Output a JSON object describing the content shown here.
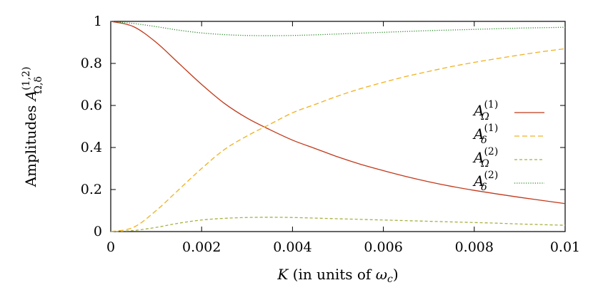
{
  "chart_data": {
    "type": "line",
    "xlabel": {
      "var": "K",
      "text": " (in units of ",
      "unit_base": "ω",
      "unit_sub": "c",
      "close": ")"
    },
    "ylabel": {
      "prefix": "Amplitudes ",
      "base": "A",
      "sup": "(1,2)",
      "sub": "Ω,δ"
    },
    "xlim": [
      0,
      0.01
    ],
    "ylim": [
      0,
      1
    ],
    "xticks": [
      0,
      0.002,
      0.004,
      0.006,
      0.008,
      0.01
    ],
    "xtick_labels": [
      "0",
      "0.002",
      "0.004",
      "0.006",
      "0.008",
      "0.01"
    ],
    "yticks": [
      0,
      0.2,
      0.4,
      0.6,
      0.8,
      1
    ],
    "ytick_labels": [
      "0",
      "0.2",
      "0.4",
      "0.6",
      "0.8",
      "1"
    ],
    "grid": false,
    "legend_position": "right",
    "x": [
      0,
      0.0005,
      0.001,
      0.0015,
      0.002,
      0.0025,
      0.003,
      0.0035,
      0.004,
      0.0045,
      0.005,
      0.0055,
      0.006,
      0.0065,
      0.007,
      0.0075,
      0.008,
      0.0085,
      0.009,
      0.0095,
      0.01
    ],
    "series": [
      {
        "base": "A",
        "sub": "Ω",
        "sup": "(1)",
        "color": "#c0391b",
        "dash": "solid",
        "values": [
          1.0,
          0.975,
          0.9,
          0.8,
          0.7,
          0.61,
          0.54,
          0.485,
          0.435,
          0.395,
          0.355,
          0.32,
          0.29,
          0.262,
          0.237,
          0.215,
          0.196,
          0.179,
          0.163,
          0.148,
          0.133
        ]
      },
      {
        "base": "A",
        "sub": "δ",
        "sup": "(1)",
        "color": "#f0b020",
        "dash": "dashed",
        "values": [
          0.0,
          0.02,
          0.1,
          0.2,
          0.3,
          0.39,
          0.455,
          0.51,
          0.565,
          0.605,
          0.645,
          0.68,
          0.71,
          0.738,
          0.762,
          0.785,
          0.805,
          0.823,
          0.84,
          0.856,
          0.87
        ]
      },
      {
        "base": "A",
        "sub": "Ω",
        "sup": "(2)",
        "color": "#a8b040",
        "dash": "shortdash",
        "values": [
          0.0,
          0.005,
          0.02,
          0.04,
          0.055,
          0.063,
          0.067,
          0.068,
          0.067,
          0.064,
          0.061,
          0.058,
          0.055,
          0.052,
          0.049,
          0.046,
          0.043,
          0.04,
          0.036,
          0.033,
          0.03
        ]
      },
      {
        "base": "A",
        "sub": "δ",
        "sup": "(2)",
        "color": "#2e8b2e",
        "dash": "dotted",
        "values": [
          1.0,
          0.99,
          0.975,
          0.958,
          0.945,
          0.937,
          0.933,
          0.932,
          0.933,
          0.936,
          0.94,
          0.944,
          0.948,
          0.952,
          0.956,
          0.959,
          0.962,
          0.965,
          0.968,
          0.97,
          0.972
        ]
      }
    ]
  }
}
